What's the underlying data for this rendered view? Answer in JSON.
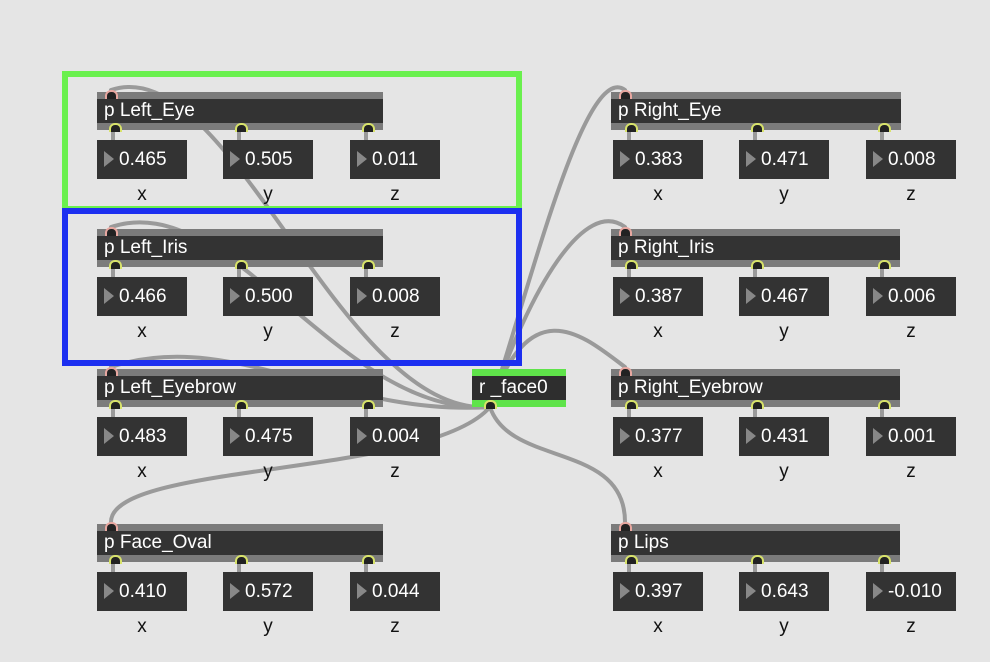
{
  "receiver": {
    "label": "r _face0"
  },
  "axes": [
    "x",
    "y",
    "z"
  ],
  "highlights": {
    "green": "#6af04e",
    "blue": "#1c2ff0"
  },
  "subpatches": [
    {
      "label": "p Left_Eye",
      "values": [
        "0.465",
        "0.505",
        "0.011"
      ]
    },
    {
      "label": "p Left_Iris",
      "values": [
        "0.466",
        "0.500",
        "0.008"
      ]
    },
    {
      "label": "p Left_Eyebrow",
      "values": [
        "0.483",
        "0.475",
        "0.004"
      ]
    },
    {
      "label": "p Face_Oval",
      "values": [
        "0.410",
        "0.572",
        "0.044"
      ]
    },
    {
      "label": "p Right_Eye",
      "values": [
        "0.383",
        "0.471",
        "0.008"
      ]
    },
    {
      "label": "p Right_Iris",
      "values": [
        "0.387",
        "0.467",
        "0.006"
      ]
    },
    {
      "label": "p Right_Eyebrow",
      "values": [
        "0.377",
        "0.431",
        "0.001"
      ]
    },
    {
      "label": "p Lips",
      "values": [
        "0.397",
        "0.643",
        "-0.010"
      ]
    }
  ]
}
